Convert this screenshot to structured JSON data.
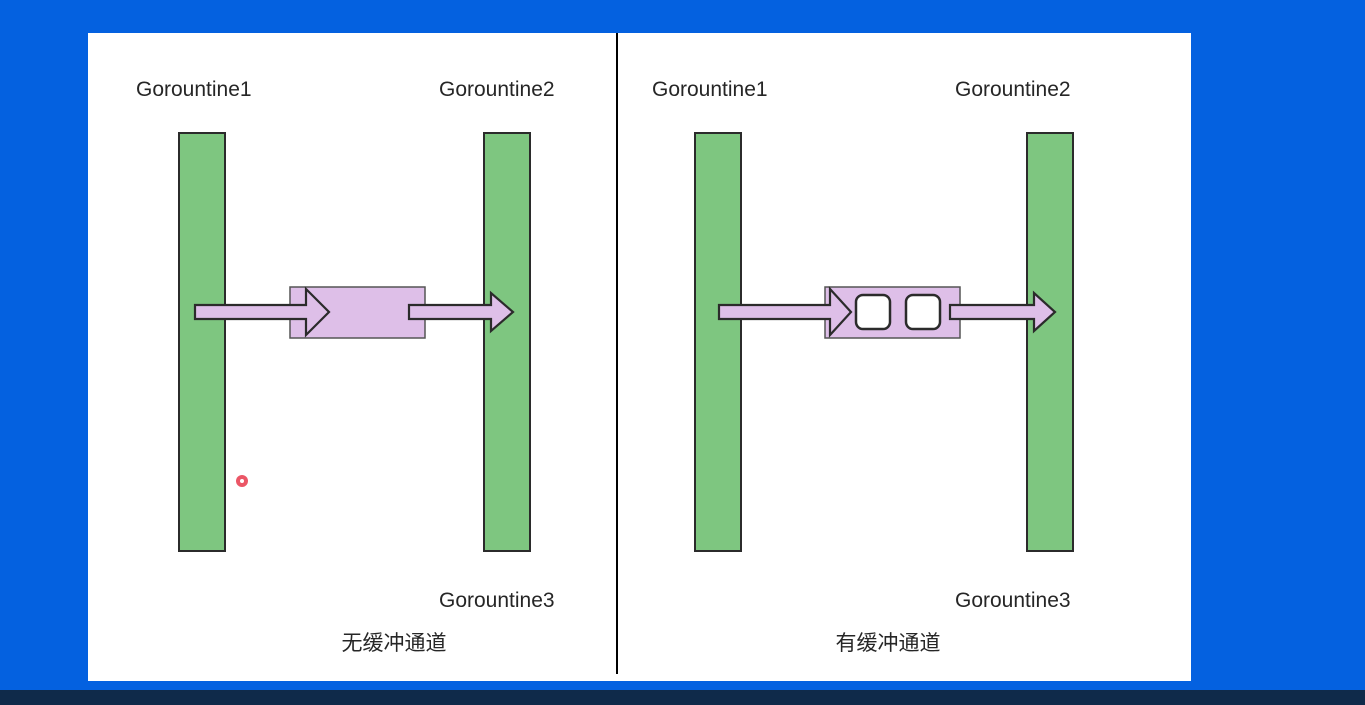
{
  "left_panel": {
    "goroutine_top_left": "Gorountine1",
    "goroutine_top_right": "Gorountine2",
    "goroutine_bottom_right": "Gorountine3",
    "caption": "无缓冲通道",
    "buffer_slots": 0
  },
  "right_panel": {
    "goroutine_top_left": "Gorountine1",
    "goroutine_top_right": "Gorountine2",
    "goroutine_bottom_right": "Gorountine3",
    "caption": "有缓冲通道",
    "buffer_slots": 2
  },
  "colors": {
    "background": "#0461e0",
    "goroutine_bar": "#7ec680",
    "channel": "#debfe8",
    "arrow": "#debfe8",
    "outline": "#2b2b2b",
    "cursor_dot": "#e8384b"
  }
}
